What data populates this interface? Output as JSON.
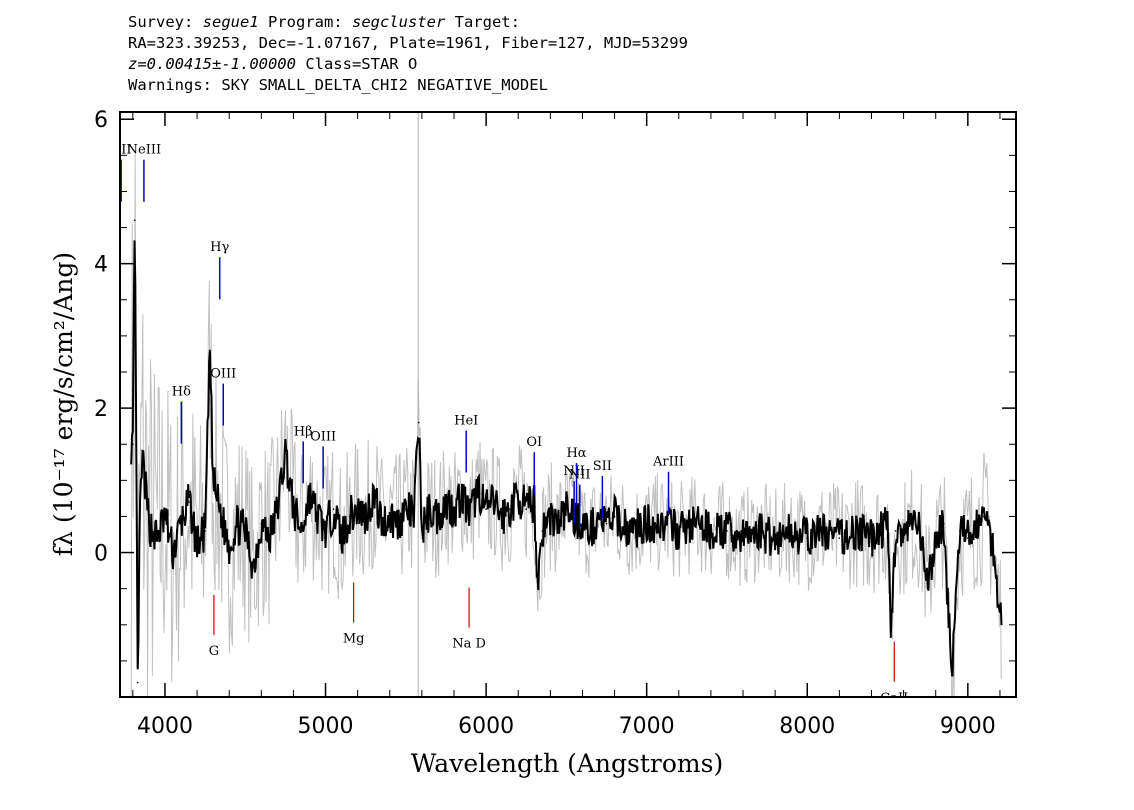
{
  "header": {
    "survey_prefix": "Survey: ",
    "survey": "segue1",
    "program_prefix": " Program: ",
    "program": "segcluster",
    "target_prefix": " Target:",
    "line2": "RA=323.39253, Dec=-1.07167, Plate=1961, Fiber=127, MJD=53299",
    "redshift": "z=0.00415±-1.00000",
    "class_text": " Class=STAR O",
    "warnings": "Warnings: SKY SMALL_DELTA_CHI2 NEGATIVE_MODEL"
  },
  "chart_data": {
    "type": "line",
    "xlabel": "Wavelength (Angstroms)",
    "ylabel": "fλ (10⁻¹⁷ erg/s/cm²/Ang)",
    "xlim": [
      3720,
      9300
    ],
    "ylim": [
      -2.0,
      6.1
    ],
    "x_ticks": [
      4000,
      5000,
      6000,
      7000,
      8000,
      9000
    ],
    "y_ticks": [
      0,
      2,
      4,
      6
    ],
    "colors": {
      "flux": "#000000",
      "error": "#c0c0c0",
      "emission": "#0000cc",
      "absorption": "#cc0000",
      "sky_line": "#b0b0b0"
    },
    "series": [
      {
        "role": "flux",
        "x": [
          3800,
          3812,
          3830,
          3845,
          3860,
          3900,
          3950,
          4000,
          4050,
          4100,
          4150,
          4200,
          4250,
          4280,
          4300,
          4350,
          4400,
          4450,
          4500,
          4550,
          4600,
          4650,
          4700,
          4750,
          4800,
          4850,
          4900,
          4950,
          5000,
          5050,
          5100,
          5150,
          5200,
          5250,
          5300,
          5350,
          5400,
          5450,
          5500,
          5550,
          5580,
          5600,
          5650,
          5700,
          5750,
          5800,
          5850,
          5900,
          5950,
          6000,
          6050,
          6100,
          6150,
          6200,
          6250,
          6300,
          6320,
          6350,
          6400,
          6450,
          6500,
          6550,
          6600,
          6650,
          6700,
          6750,
          6800,
          6900,
          7000,
          7100,
          7200,
          7300,
          7400,
          7500,
          7600,
          7700,
          7800,
          7900,
          8000,
          8100,
          8200,
          8300,
          8400,
          8500,
          8520,
          8550,
          8600,
          8650,
          8700,
          8750,
          8800,
          8850,
          8900,
          8950,
          9000,
          9050,
          9100,
          9150,
          9200
        ],
        "y": [
          1.5,
          4.6,
          -1.8,
          0.6,
          1.3,
          0.4,
          0.2,
          0.5,
          0.0,
          0.4,
          0.7,
          0.1,
          0.3,
          2.8,
          1.0,
          0.5,
          0.1,
          0.4,
          0.3,
          -0.2,
          0.4,
          0.2,
          0.6,
          1.4,
          0.6,
          0.3,
          0.8,
          0.5,
          0.3,
          0.6,
          0.2,
          0.5,
          0.6,
          0.5,
          0.8,
          0.4,
          0.5,
          0.4,
          0.6,
          0.5,
          1.8,
          0.3,
          0.6,
          0.5,
          0.7,
          0.6,
          0.8,
          0.5,
          0.9,
          0.6,
          0.7,
          0.5,
          0.6,
          0.8,
          0.6,
          0.7,
          -0.4,
          0.3,
          0.5,
          0.4,
          0.6,
          0.5,
          0.4,
          0.3,
          0.5,
          0.4,
          0.5,
          0.3,
          0.4,
          0.4,
          0.3,
          0.4,
          0.3,
          0.3,
          0.2,
          0.3,
          0.2,
          0.3,
          0.2,
          0.3,
          0.2,
          0.3,
          0.2,
          0.4,
          -1.1,
          0.3,
          0.2,
          0.4,
          0.3,
          -0.5,
          0.2,
          0.4,
          -1.7,
          0.3,
          0.2,
          0.4,
          0.5,
          0.2,
          -0.8
        ]
      },
      {
        "role": "error",
        "x": [
          3800,
          3850,
          3900,
          4000,
          4100,
          4200,
          4300,
          4400,
          4500,
          4600,
          4700,
          4800,
          4900,
          5000,
          5200,
          5400,
          5600,
          5800,
          6000,
          6200,
          6400,
          6600,
          6800,
          7000,
          7400,
          7800,
          8200,
          8600,
          9000,
          9200
        ],
        "y": [
          2.6,
          2.4,
          2.0,
          1.6,
          1.4,
          1.3,
          1.2,
          1.1,
          1.0,
          0.95,
          0.9,
          0.85,
          0.8,
          0.75,
          0.7,
          0.7,
          0.65,
          0.6,
          0.6,
          0.55,
          0.55,
          0.5,
          0.5,
          0.5,
          0.5,
          0.5,
          0.55,
          0.6,
          0.65,
          0.7
        ]
      }
    ],
    "emission_lines": [
      {
        "label": "OII",
        "x": 3727,
        "y_label": 5.55
      },
      {
        "label": "NeIII",
        "x": 3869,
        "y_label": 5.55
      },
      {
        "label": "Hγ",
        "x": 4341,
        "y_label": 4.2
      },
      {
        "label": "Hδ",
        "x": 4102,
        "y_label": 2.2
      },
      {
        "label": "OIII",
        "x": 4363,
        "y_label": 2.45
      },
      {
        "label": "Hβ",
        "x": 4861,
        "y_label": 1.65
      },
      {
        "label": "OIII",
        "x": 4985,
        "y_label": 1.58
      },
      {
        "label": "HeI",
        "x": 5876,
        "y_label": 1.8
      },
      {
        "label": "OI",
        "x": 6300,
        "y_label": 1.5
      },
      {
        "label": "NII",
        "x": 6548,
        "y_label": 1.1
      },
      {
        "label": "Hα",
        "x": 6563,
        "y_label": 1.35
      },
      {
        "label": "SII",
        "x": 6724,
        "y_label": 1.17
      },
      {
        "label": "NII",
        "x": 6583,
        "y_label": 1.05
      },
      {
        "label": "ArIII",
        "x": 7136,
        "y_label": 1.23
      }
    ],
    "absorption_lines": [
      {
        "label": "G",
        "x": 4305,
        "y_label": -1.25
      },
      {
        "label": "Mg",
        "x": 5175,
        "y_label": -1.08
      },
      {
        "label": "Na D",
        "x": 5894,
        "y_label": -1.15
      },
      {
        "label": "CaII",
        "x": 8542,
        "y_label": -1.9
      }
    ],
    "sky_line_x": 5577
  }
}
